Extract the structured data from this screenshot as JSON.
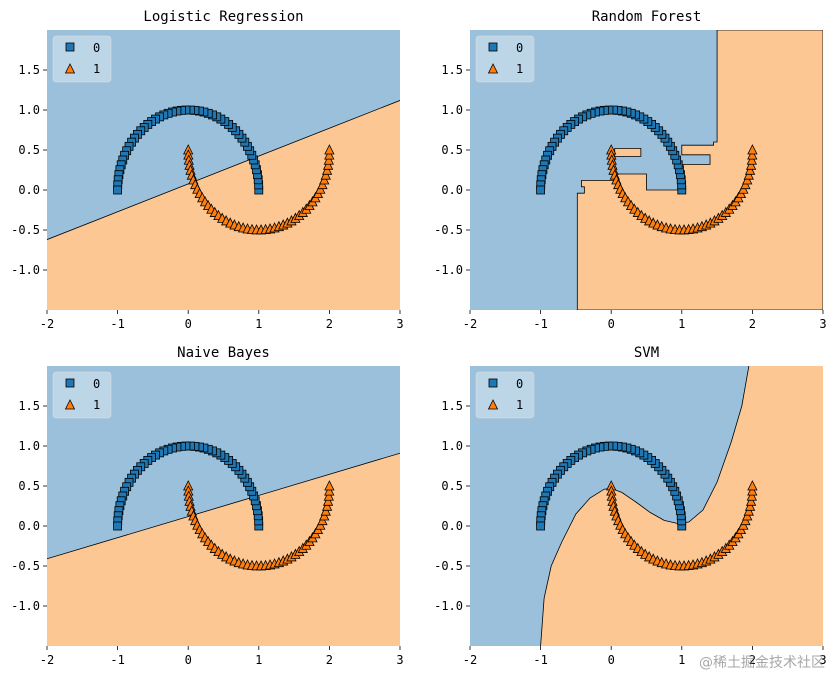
{
  "colors": {
    "class0_region": "#9ac0db",
    "class1_region": "#fdc793",
    "class0_marker": "#1f77b4",
    "class1_marker": "#ff7f0e",
    "boundary": "#000000"
  },
  "legend_labels": [
    "0",
    "1"
  ],
  "watermark": "@稀土掘金技术社区",
  "chart_data": [
    {
      "type": "scatter",
      "title": "Logistic Regression",
      "xlim": [
        -2,
        3
      ],
      "ylim": [
        -1.5,
        2.0
      ],
      "xticks": [
        -2,
        -1,
        0,
        1,
        2,
        3
      ],
      "yticks": [
        -1.0,
        -0.5,
        0.0,
        0.5,
        1.0,
        1.5
      ],
      "legend": "top-left",
      "decision_boundary": {
        "kind": "line",
        "points": [
          [
            -2,
            -0.62
          ],
          [
            3,
            1.12
          ]
        ]
      },
      "series": [
        {
          "name": "0",
          "marker": "square",
          "shape": "upper-moon",
          "center": [
            0,
            0
          ],
          "radius": 1.0
        },
        {
          "name": "1",
          "marker": "triangle",
          "shape": "lower-moon",
          "center": [
            1,
            0.5
          ],
          "radius": 1.0
        }
      ]
    },
    {
      "type": "scatter",
      "title": "Random Forest",
      "xlim": [
        -2,
        3
      ],
      "ylim": [
        -1.5,
        2.0
      ],
      "xticks": [
        -2,
        -1,
        0,
        1,
        2,
        3
      ],
      "yticks": [
        -1.0,
        -0.5,
        0.0,
        0.5,
        1.0,
        1.5
      ],
      "legend": "top-left",
      "decision_boundary": {
        "kind": "region_polygon_class1",
        "points": [
          [
            1.5,
            2.0
          ],
          [
            3,
            2.0
          ],
          [
            3,
            -1.5
          ],
          [
            -0.48,
            -1.5
          ],
          [
            -0.48,
            -0.04
          ],
          [
            -0.38,
            -0.04
          ],
          [
            -0.38,
            0.04
          ],
          [
            -0.42,
            0.04
          ],
          [
            -0.42,
            0.12
          ],
          [
            0.05,
            0.12
          ],
          [
            0.05,
            0.52
          ],
          [
            0.42,
            0.52
          ],
          [
            0.42,
            0.42
          ],
          [
            0.05,
            0.42
          ],
          [
            0.05,
            0.2
          ],
          [
            0.5,
            0.2
          ],
          [
            0.5,
            0.0
          ],
          [
            1.0,
            0.0
          ],
          [
            1.0,
            0.32
          ],
          [
            1.4,
            0.32
          ],
          [
            1.4,
            0.44
          ],
          [
            1.0,
            0.44
          ],
          [
            1.0,
            0.56
          ],
          [
            1.45,
            0.56
          ],
          [
            1.45,
            0.6
          ],
          [
            1.5,
            0.6
          ]
        ]
      },
      "series": [
        {
          "name": "0",
          "marker": "square",
          "shape": "upper-moon",
          "center": [
            0,
            0
          ],
          "radius": 1.0
        },
        {
          "name": "1",
          "marker": "triangle",
          "shape": "lower-moon",
          "center": [
            1,
            0.5
          ],
          "radius": 1.0
        }
      ]
    },
    {
      "type": "scatter",
      "title": "Naive Bayes",
      "xlim": [
        -2,
        3
      ],
      "ylim": [
        -1.5,
        2.0
      ],
      "xticks": [
        -2,
        -1,
        0,
        1,
        2,
        3
      ],
      "yticks": [
        -1.0,
        -0.5,
        0.0,
        0.5,
        1.0,
        1.5
      ],
      "legend": "top-left",
      "decision_boundary": {
        "kind": "line",
        "points": [
          [
            -2,
            -0.41
          ],
          [
            3,
            0.91
          ]
        ]
      },
      "series": [
        {
          "name": "0",
          "marker": "square",
          "shape": "upper-moon",
          "center": [
            0,
            0
          ],
          "radius": 1.0
        },
        {
          "name": "1",
          "marker": "triangle",
          "shape": "lower-moon",
          "center": [
            1,
            0.5
          ],
          "radius": 1.0
        }
      ]
    },
    {
      "type": "scatter",
      "title": "SVM",
      "xlim": [
        -2,
        3
      ],
      "ylim": [
        -1.5,
        2.0
      ],
      "xticks": [
        -2,
        -1,
        0,
        1,
        2,
        3
      ],
      "yticks": [
        -1.0,
        -0.5,
        0.0,
        0.5,
        1.0,
        1.5
      ],
      "legend": "top-left",
      "decision_boundary": {
        "kind": "curve",
        "points": [
          [
            -1.0,
            -1.5
          ],
          [
            -0.95,
            -0.9
          ],
          [
            -0.85,
            -0.5
          ],
          [
            -0.7,
            -0.2
          ],
          [
            -0.5,
            0.15
          ],
          [
            -0.3,
            0.35
          ],
          [
            -0.1,
            0.46
          ],
          [
            0.0,
            0.47
          ],
          [
            0.15,
            0.42
          ],
          [
            0.35,
            0.3
          ],
          [
            0.55,
            0.17
          ],
          [
            0.75,
            0.07
          ],
          [
            0.95,
            0.03
          ],
          [
            1.1,
            0.05
          ],
          [
            1.3,
            0.2
          ],
          [
            1.5,
            0.55
          ],
          [
            1.7,
            1.05
          ],
          [
            1.85,
            1.5
          ],
          [
            1.95,
            2.0
          ]
        ]
      },
      "series": [
        {
          "name": "0",
          "marker": "square",
          "shape": "upper-moon",
          "center": [
            0,
            0
          ],
          "radius": 1.0
        },
        {
          "name": "1",
          "marker": "triangle",
          "shape": "lower-moon",
          "center": [
            1,
            0.5
          ],
          "radius": 1.0
        }
      ]
    }
  ]
}
